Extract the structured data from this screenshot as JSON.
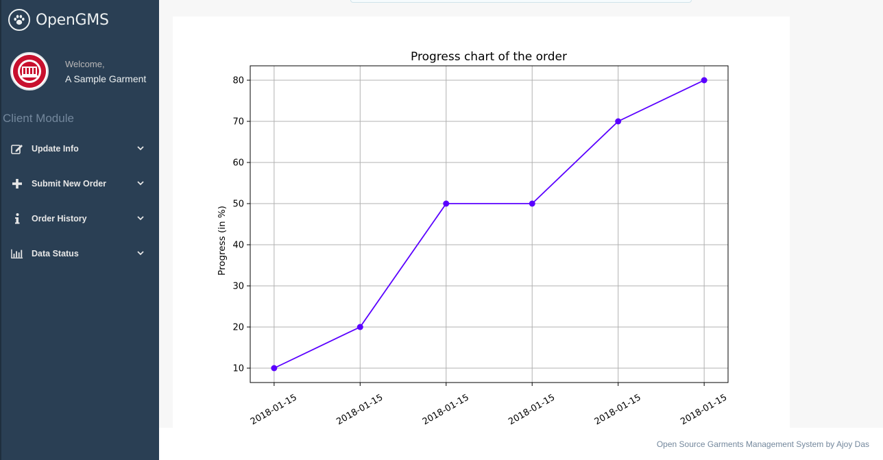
{
  "brand": {
    "title": "OpenGMS",
    "icon": "paw-icon"
  },
  "profile": {
    "welcome": "Welcome,",
    "name": "A Sample Garment"
  },
  "menu": {
    "section_title": "Client Module",
    "items": [
      {
        "label": "Update Info",
        "icon": "edit-icon"
      },
      {
        "label": "Submit New Order",
        "icon": "plus-icon"
      },
      {
        "label": "Order History",
        "icon": "info-icon"
      },
      {
        "label": "Data Status",
        "icon": "bar-chart-icon"
      }
    ]
  },
  "colors": {
    "sidebar": "#2a3f54",
    "line": "#5a00ff",
    "grid": "#b0b0b0"
  },
  "chart_data": {
    "type": "line",
    "title": "Progress chart of the order",
    "xlabel": "",
    "ylabel": "Progress (in %)",
    "x": [
      "2018-01-15",
      "2018-01-15",
      "2018-01-15",
      "2018-01-15",
      "2018-01-15",
      "2018-01-15"
    ],
    "series": [
      {
        "values": [
          10,
          20,
          50,
          50,
          70,
          80
        ]
      }
    ],
    "ylim": [
      6.5,
      83.5
    ],
    "yticks": [
      10,
      20,
      30,
      40,
      50,
      60,
      70,
      80
    ],
    "grid": true,
    "marker": "circle"
  },
  "footer": {
    "text": "Open Source Garments Management System by Ajoy Das"
  }
}
